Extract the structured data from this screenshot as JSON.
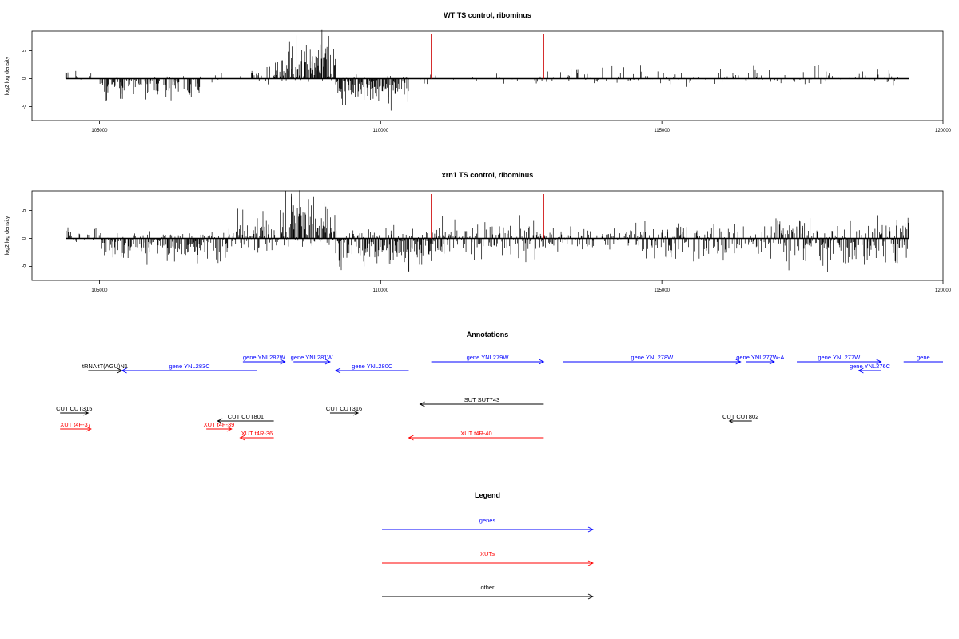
{
  "colors": {
    "gene": "#0000ff",
    "xut": "#ff0000",
    "other": "#000000",
    "marker": "#cc0000",
    "bar": "#000000"
  },
  "chart_data": [
    {
      "type": "bar",
      "title": "WT TS control, ribominus",
      "ylabel": "log2 log density",
      "xlim": [
        103800,
        120000
      ],
      "ylim": [
        -7.5,
        8.5
      ],
      "xticks": [
        "105000",
        "110000",
        "115000",
        "120000"
      ],
      "yticks": [
        "-5",
        "0",
        "5"
      ],
      "markers": [
        110900,
        112900
      ],
      "data_range": [
        104400,
        119400
      ],
      "profile": [
        {
          "x0": 104400,
          "x1": 105000,
          "pos": 2.5,
          "neg": 0.3,
          "dens": 0.2
        },
        {
          "x0": 105000,
          "x1": 106800,
          "pos": 0.6,
          "neg": 3.5,
          "dens": 0.6
        },
        {
          "x0": 106800,
          "x1": 107700,
          "pos": 0.8,
          "neg": 1.2,
          "dens": 0.1
        },
        {
          "x0": 107700,
          "x1": 108300,
          "pos": 2.8,
          "neg": 0.8,
          "dens": 0.5
        },
        {
          "x0": 108300,
          "x1": 109200,
          "pos": 7.0,
          "neg": 0.8,
          "dens": 0.95
        },
        {
          "x0": 109200,
          "x1": 110500,
          "pos": 0.8,
          "neg": 4.5,
          "dens": 0.85
        },
        {
          "x0": 110500,
          "x1": 112900,
          "pos": 1.0,
          "neg": 1.4,
          "dens": 0.12
        },
        {
          "x0": 112900,
          "x1": 119400,
          "pos": 2.4,
          "neg": 1.5,
          "dens": 0.22
        }
      ]
    },
    {
      "type": "bar",
      "title": "xrn1 TS control, ribominus",
      "ylabel": "log2 log density",
      "xlim": [
        103800,
        120000
      ],
      "ylim": [
        -7.5,
        8.5
      ],
      "xticks": [
        "105000",
        "110000",
        "115000",
        "120000"
      ],
      "yticks": [
        "-5",
        "0",
        "5"
      ],
      "markers": [
        110900,
        112900
      ],
      "data_range": [
        104400,
        119400
      ],
      "profile": [
        {
          "x0": 104400,
          "x1": 105000,
          "pos": 2.5,
          "neg": 0.8,
          "dens": 0.4
        },
        {
          "x0": 105000,
          "x1": 107300,
          "pos": 1.2,
          "neg": 4.5,
          "dens": 0.9
        },
        {
          "x0": 107300,
          "x1": 108300,
          "pos": 4.5,
          "neg": 2.2,
          "dens": 0.9
        },
        {
          "x0": 108300,
          "x1": 109200,
          "pos": 7.5,
          "neg": 1.5,
          "dens": 1.0
        },
        {
          "x0": 109200,
          "x1": 111000,
          "pos": 2.0,
          "neg": 5.5,
          "dens": 1.0
        },
        {
          "x0": 111000,
          "x1": 112900,
          "pos": 3.5,
          "neg": 3.5,
          "dens": 0.8
        },
        {
          "x0": 112900,
          "x1": 114500,
          "pos": 2.0,
          "neg": 2.0,
          "dens": 0.6
        },
        {
          "x0": 114500,
          "x1": 117000,
          "pos": 3.0,
          "neg": 3.5,
          "dens": 0.75
        },
        {
          "x0": 117000,
          "x1": 119400,
          "pos": 3.5,
          "neg": 5.0,
          "dens": 0.9
        }
      ]
    }
  ],
  "annotations": {
    "title": "Annotations",
    "xlim": [
      103800,
      120000
    ],
    "features": [
      {
        "label": "tRNA tT(AGU)N1",
        "start": 104800,
        "end": 105400,
        "strand": "+",
        "cls": "other",
        "row": 1
      },
      {
        "label": "gene YNL283C",
        "start": 105400,
        "end": 107800,
        "strand": "-",
        "cls": "gene",
        "row": 1
      },
      {
        "label": "gene YNL282W",
        "start": 107550,
        "end": 108300,
        "strand": "+",
        "cls": "gene",
        "row": 0
      },
      {
        "label": "gene YNL281W",
        "start": 108450,
        "end": 109100,
        "strand": "+",
        "cls": "gene",
        "row": 0
      },
      {
        "label": "gene YNL280C",
        "start": 109200,
        "end": 110500,
        "strand": "-",
        "cls": "gene",
        "row": 1
      },
      {
        "label": "gene YNL279W",
        "start": 110900,
        "end": 112900,
        "strand": "+",
        "cls": "gene",
        "row": 0
      },
      {
        "label": "gene YNL278W",
        "start": 113250,
        "end": 116400,
        "strand": "+",
        "cls": "gene",
        "row": 0
      },
      {
        "label": "gene YNL277W-A",
        "start": 116500,
        "end": 117000,
        "strand": "+",
        "cls": "gene",
        "row": 0
      },
      {
        "label": "gene YNL277W",
        "start": 117400,
        "end": 118900,
        "strand": "+",
        "cls": "gene",
        "row": 0
      },
      {
        "label": "gene YNL276C",
        "start": 118500,
        "end": 118900,
        "strand": "-",
        "cls": "gene",
        "row": 1
      },
      {
        "label": "gene",
        "start": 119300,
        "end": 120000,
        "strand": "none",
        "cls": "gene",
        "row": 0
      },
      {
        "label": "SUT SUT743",
        "start": 110700,
        "end": 112900,
        "strand": "-",
        "cls": "other",
        "row": 2
      },
      {
        "label": "CUT CUT315",
        "start": 104300,
        "end": 104800,
        "strand": "+",
        "cls": "other",
        "row": 3
      },
      {
        "label": "CUT CUT801",
        "start": 107100,
        "end": 108100,
        "strand": "-",
        "cls": "other",
        "row": 4
      },
      {
        "label": "CUT CUT316",
        "start": 109100,
        "end": 109600,
        "strand": "+",
        "cls": "other",
        "row": 3
      },
      {
        "label": "CUT CUT802",
        "start": 116200,
        "end": 116600,
        "strand": "-",
        "cls": "other",
        "row": 4
      },
      {
        "label": "XUT t4F-37",
        "start": 104300,
        "end": 104850,
        "strand": "+",
        "cls": "xut",
        "row": 5
      },
      {
        "label": "XUT t4F-39",
        "start": 106900,
        "end": 107350,
        "strand": "+",
        "cls": "xut",
        "row": 5
      },
      {
        "label": "XUT t4R-36",
        "start": 107500,
        "end": 108100,
        "strand": "-",
        "cls": "xut",
        "row": 6
      },
      {
        "label": "XUT t4R-40",
        "start": 110500,
        "end": 112900,
        "strand": "-",
        "cls": "xut",
        "row": 6
      }
    ]
  },
  "legend": {
    "title": "Legend",
    "items": [
      {
        "label": "genes",
        "cls": "gene"
      },
      {
        "label": "XUTs",
        "cls": "xut"
      },
      {
        "label": "other",
        "cls": "other"
      }
    ]
  }
}
